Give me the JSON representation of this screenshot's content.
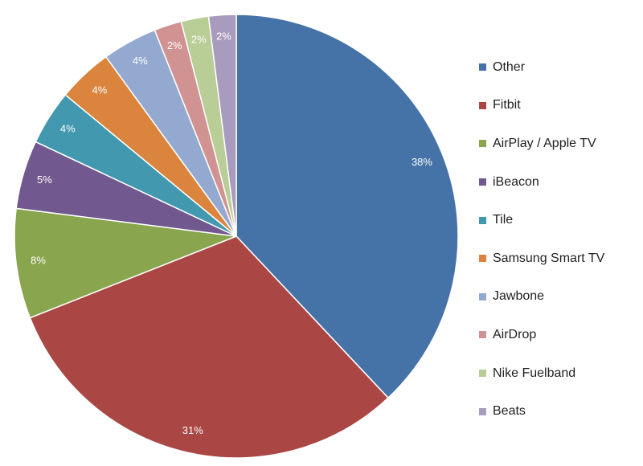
{
  "chart_data": {
    "type": "pie",
    "title": "",
    "legend_position": "right",
    "categories": [
      "Other",
      "Fitbit",
      "AirPlay / Apple TV",
      "iBeacon",
      "Tile",
      "Samsung Smart TV",
      "Jawbone",
      "AirDrop",
      "Nike Fuelband",
      "Beats"
    ],
    "values": [
      38,
      31,
      8,
      5,
      4,
      4,
      4,
      2,
      2,
      2
    ],
    "labels": [
      "38%",
      "31%",
      "8%",
      "5%",
      "4%",
      "4%",
      "4%",
      "2%",
      "2%",
      "2%"
    ],
    "colors": [
      "#4572a7",
      "#aa4643",
      "#89a54e",
      "#71588f",
      "#4198af",
      "#db843d",
      "#93a9cf",
      "#d19392",
      "#b9cd96",
      "#a99bbd"
    ]
  }
}
